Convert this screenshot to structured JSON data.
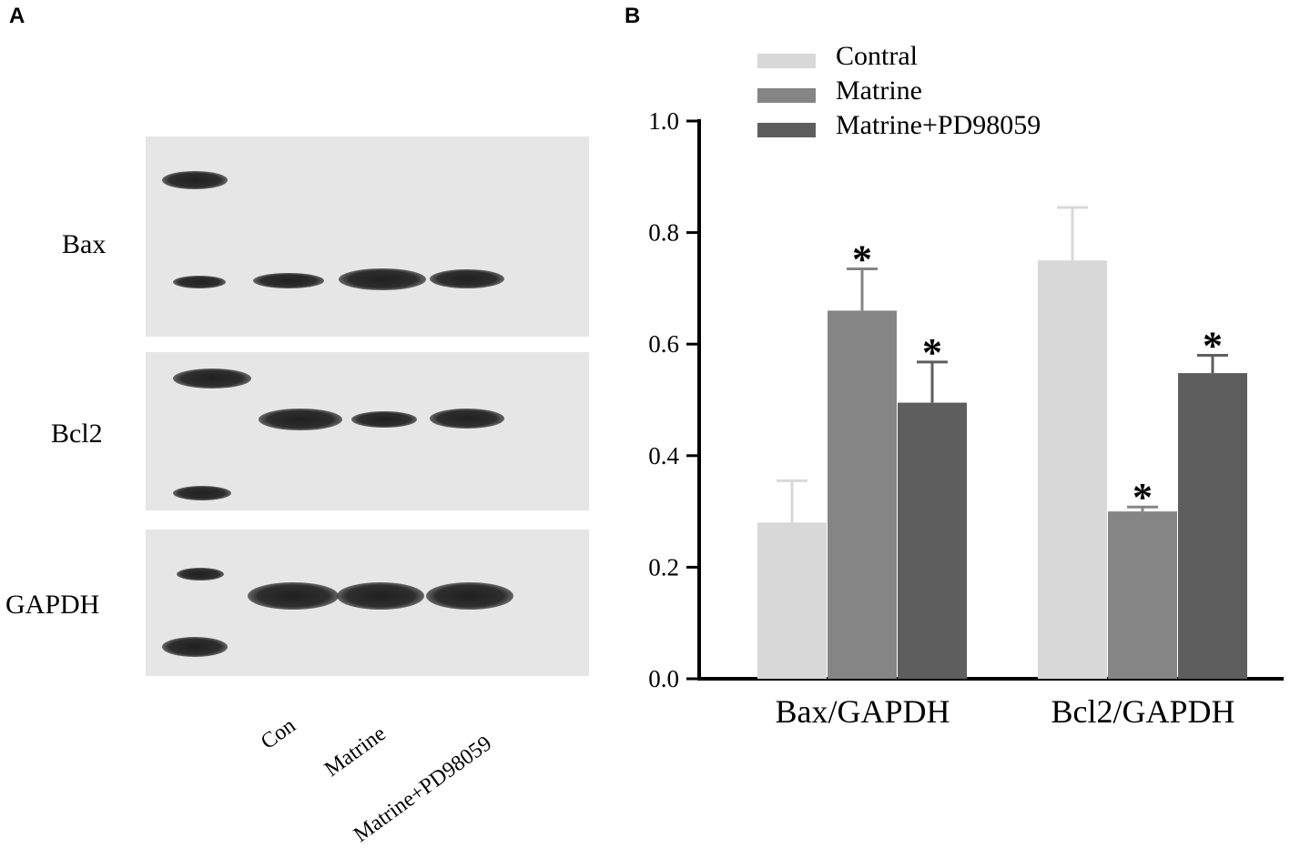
{
  "panels": {
    "a": "A",
    "b": "B"
  },
  "blot": {
    "rows": [
      "Bax",
      "Bcl2",
      "GAPDH"
    ],
    "lanes": [
      "Con",
      "Matrine",
      "Matrine+PD98059"
    ]
  },
  "chart_data": {
    "type": "bar",
    "categories": [
      "Bax/GAPDH",
      "Bcl2/GAPDH"
    ],
    "series": [
      {
        "name": "Contral",
        "values": [
          0.28,
          0.75
        ],
        "errors": [
          0.075,
          0.095
        ],
        "color": "#d8d8d8",
        "significant": [
          false,
          false
        ]
      },
      {
        "name": "Matrine",
        "values": [
          0.66,
          0.3
        ],
        "errors": [
          0.075,
          0.008
        ],
        "color": "#858585",
        "significant": [
          true,
          true
        ]
      },
      {
        "name": "Matrine+PD98059",
        "values": [
          0.495,
          0.548
        ],
        "errors": [
          0.073,
          0.032
        ],
        "color": "#5e5e5e",
        "significant": [
          true,
          true
        ]
      }
    ],
    "ylim": [
      0.0,
      1.0
    ],
    "yticks": [
      "0.0",
      "0.2",
      "0.4",
      "0.6",
      "0.8",
      "1.0"
    ],
    "significance_marker": "*",
    "legend_position": "top",
    "grid": false,
    "title": "",
    "xlabel": "",
    "ylabel": ""
  }
}
